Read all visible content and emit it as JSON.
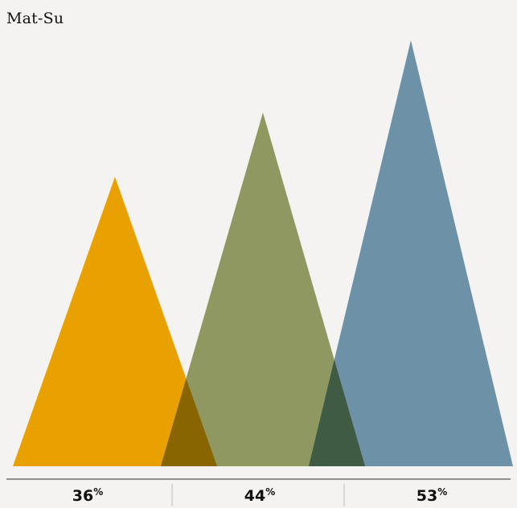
{
  "chart_data": {
    "type": "area",
    "title": "Mat-Su",
    "categories": [
      "",
      "",
      ""
    ],
    "values": [
      36,
      44,
      53
    ],
    "value_suffix": "%",
    "ylim": [
      0,
      58
    ],
    "colors": [
      "#f2a900",
      "#7e8b44",
      "#5282a0"
    ],
    "grid": false,
    "legend": "none"
  }
}
